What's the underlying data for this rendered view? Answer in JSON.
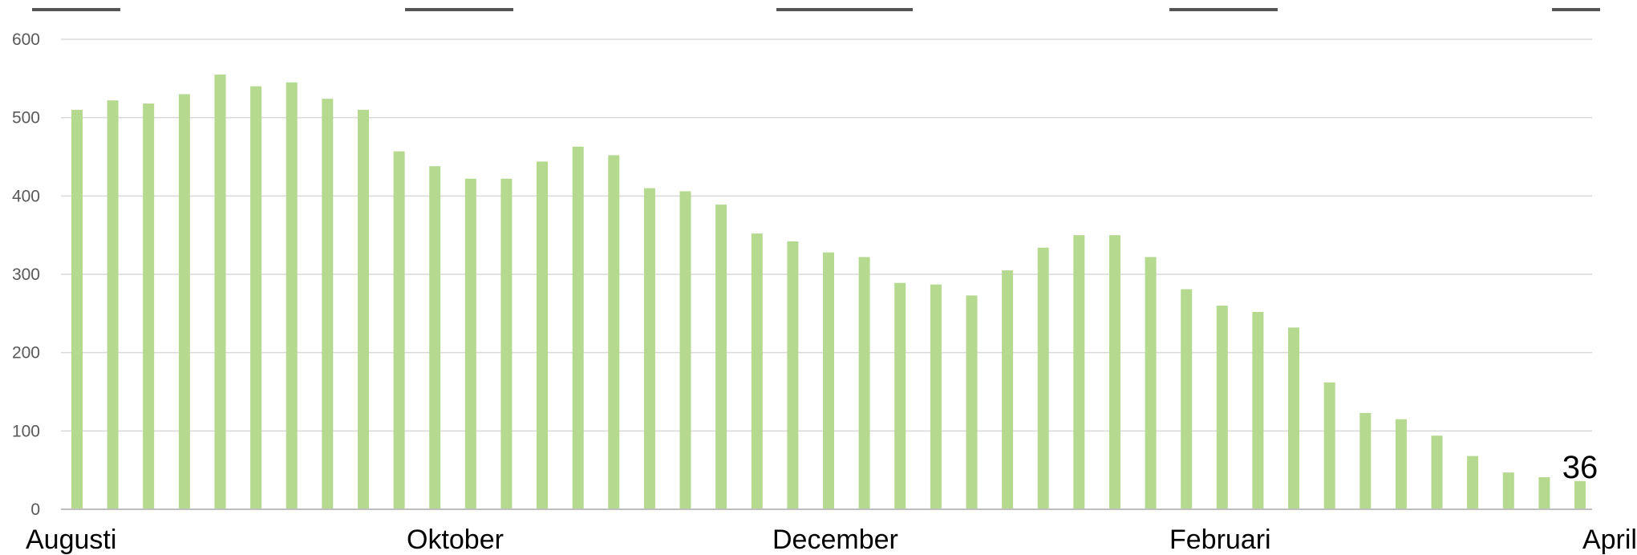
{
  "chart_data": {
    "type": "bar",
    "title": "",
    "xlabel": "",
    "ylabel": "",
    "ylim": [
      0,
      600
    ],
    "yticks": [
      "0",
      "100",
      "200",
      "300",
      "400",
      "500",
      "600"
    ],
    "grid": true,
    "legend": "none",
    "x_axis_labels": [
      "Augusti",
      "Oktober",
      "December",
      "Februari",
      "April"
    ],
    "bar_color": "#b5d98e",
    "gridline_color": "#d9d9d9",
    "series": [
      {
        "values": [
          510,
          522,
          518,
          530,
          555,
          540,
          545,
          524,
          510,
          457,
          438,
          422,
          422,
          444,
          463,
          452,
          410,
          406,
          389,
          352,
          342,
          328,
          322,
          289,
          287,
          273,
          305,
          334,
          350,
          350,
          322,
          281,
          260,
          252,
          232,
          162,
          123,
          115,
          94,
          68,
          47,
          41,
          36
        ]
      }
    ],
    "data_labels": [
      {
        "index": 42,
        "text": "36"
      }
    ]
  }
}
